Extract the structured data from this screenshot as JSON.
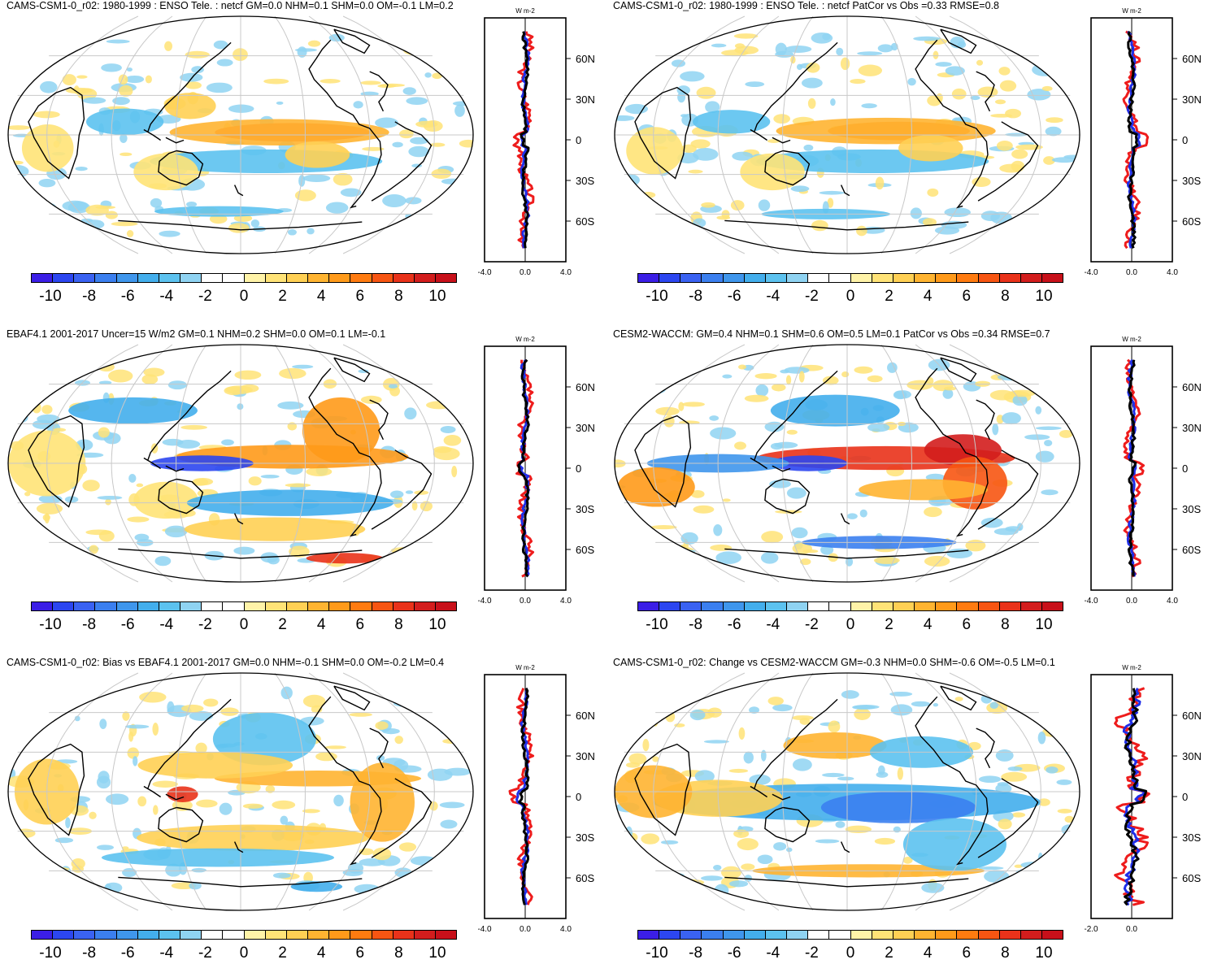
{
  "figure": {
    "colorbar": {
      "colors": [
        "#3b1ee6",
        "#2c46f0",
        "#3a62f2",
        "#3b7fef",
        "#3f96ec",
        "#43aeec",
        "#5cc2ef",
        "#8fd3f2",
        "#ffffff",
        "#ffffff",
        "#fff3a8",
        "#ffe377",
        "#ffd054",
        "#ffb431",
        "#ff9a1a",
        "#ff7b10",
        "#f75512",
        "#e9321a",
        "#d31d1d",
        "#c8101a"
      ],
      "labels": [
        "-10",
        "-8",
        "-6",
        "-4",
        "-2",
        "0",
        "2",
        "4",
        "6",
        "8",
        "10"
      ]
    },
    "colors": {
      "coast": "#000000",
      "grid": "#c8c8c8",
      "series_red": "#ee1c1c",
      "series_blue": "#1f2ee8",
      "series_black": "#000000"
    },
    "zonal_lat_labels": [
      "60N",
      "30N",
      "0",
      "30S",
      "60S"
    ],
    "units_label": "W m-2"
  },
  "panels": [
    {
      "title": "CAMS-CSM1-0_r02: 1980-1999 : ENSO Tele. : netcf GM=0.0 NHM=0.1 SHM=0.0 OM=-0.1 LM=0.2",
      "zonal_axis_labels": [
        "-4.0",
        "0.0",
        "4.0"
      ],
      "zonal_xlim": [
        -4,
        4
      ]
    },
    {
      "title": "CAMS-CSM1-0_r02: 1980-1999 : ENSO Tele. : netcf PatCor vs Obs =0.33 RMSE=0.8",
      "zonal_axis_labels": [
        "-4.0",
        "0.0",
        "4.0"
      ],
      "zonal_xlim": [
        -4,
        4
      ]
    },
    {
      "title": "EBAF4.1 2001-2017 Uncer=15 W/m2 GM=0.1 NHM=0.2 SHM=0.0 OM=0.1 LM=-0.1",
      "zonal_axis_labels": [
        "-4.0",
        "0.0",
        "4.0"
      ],
      "zonal_xlim": [
        -4,
        4
      ]
    },
    {
      "title": "CESM2-WACCM: GM=0.4 NHM=0.1 SHM=0.6 OM=0.5 LM=0.1 PatCor vs Obs =0.34 RMSE=0.7",
      "zonal_axis_labels": [
        "-4.0",
        "0.0",
        "4.0"
      ],
      "zonal_xlim": [
        -4,
        4
      ]
    },
    {
      "title": "CAMS-CSM1-0_r02: Bias vs EBAF4.1 2001-2017 GM=0.0 NHM=-0.1 SHM=0.0 OM=-0.2 LM=0.4",
      "zonal_axis_labels": [
        "-4.0",
        "0.0",
        "4.0"
      ],
      "zonal_xlim": [
        -4,
        4
      ]
    },
    {
      "title": "CAMS-CSM1-0_r02: Change vs CESM2-WACCM GM=-0.3 NHM=0.0 SHM=-0.6 OM=-0.5 LM=0.1",
      "zonal_axis_labels": [
        "-2.0",
        "0.0"
      ],
      "zonal_xlim": [
        -2,
        2
      ]
    }
  ]
}
